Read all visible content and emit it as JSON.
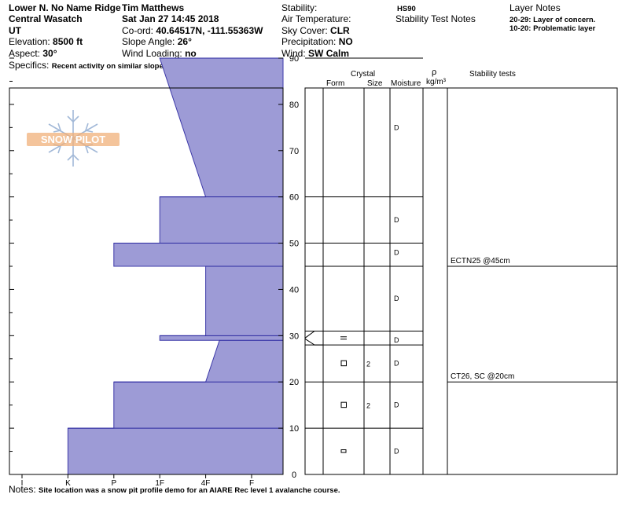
{
  "header": {
    "location": "Lower N. No Name Ridge",
    "observer": "Tim Matthews",
    "range": "Central Wasatch",
    "datetime": "Sat Jan 27 14:45 2018",
    "state": "UT",
    "coord_label": "Co-ord:",
    "coord_value": "40.64517N, -111.55363W",
    "elevation_label": "Elevation:",
    "elevation_value": "8500 ft",
    "slope_label": "Slope Angle:",
    "slope_value": "26°",
    "aspect_label": "Aspect:",
    "aspect_value": "30°",
    "wind_loading_label": "Wind Loading:",
    "wind_loading_value": "no",
    "specifics_label": "Specifics:",
    "specifics_value": "Recent activity on similar slopes",
    "stability_label": "Stability:",
    "air_temp_label": "Air Temperature:",
    "sky_label": "Sky Cover:",
    "sky_value": "CLR",
    "precip_label": "Precipitation:",
    "precip_value": "NO",
    "wind_label": "Wind:",
    "wind_value": "SW Calm",
    "hs": "HS90",
    "stability_notes": "Stability Test Notes",
    "layer_notes_title": "Layer Notes",
    "layer_note_1": "20-29: Layer of concern.",
    "layer_note_2": "10-20: Problematic layer"
  },
  "columns": {
    "crystal": "Crystal",
    "form": "Form",
    "size": "Size",
    "moisture": "Moisture",
    "rho": "ρ",
    "density_unit": "kg/m³",
    "stability_tests": "Stability tests"
  },
  "logo_text": "SNOW PILOT",
  "notes_label": "Notes:",
  "notes_value": "Site location was a snow pit profile demo for an AIARE Rec level 1 avalanche course.",
  "chart_data": {
    "type": "area",
    "title": "",
    "xlabel": "",
    "ylabel": "",
    "hardness_scale": [
      "I",
      "K",
      "P",
      "1F",
      "4F",
      "F"
    ],
    "y_ticks": [
      0,
      10,
      20,
      30,
      40,
      50,
      60,
      70,
      80,
      90
    ],
    "ylim": [
      0,
      90
    ],
    "hs_cm": 90,
    "hardness_profile": [
      {
        "bottom": 0,
        "top": 10,
        "hardness": "K"
      },
      {
        "bottom": 10,
        "top": 20,
        "hardness": "P"
      },
      {
        "bottom": 20,
        "top": 29,
        "hardness": "4F",
        "hardness_top": "4F+",
        "note": "tapers"
      },
      {
        "bottom": 29,
        "top": 30,
        "hardness": "1F"
      },
      {
        "bottom": 30,
        "top": 45,
        "hardness": "4F"
      },
      {
        "bottom": 45,
        "top": 50,
        "hardness": "P"
      },
      {
        "bottom": 50,
        "top": 60,
        "hardness": "1F"
      },
      {
        "bottom": 60,
        "top": 90,
        "hardness": "4F",
        "hardness_top": "1F"
      }
    ],
    "layer_boundaries": [
      10,
      20,
      28,
      31,
      45,
      50,
      60,
      90
    ],
    "grains": [
      {
        "depth": 5,
        "symbol": "rect-small",
        "size": ""
      },
      {
        "depth": 15,
        "symbol": "square",
        "size": "2"
      },
      {
        "depth": 24,
        "symbol": "square",
        "size": "2"
      },
      {
        "depth": 29.5,
        "symbol": "double-line",
        "size": ""
      }
    ],
    "moisture": [
      {
        "depth": 5,
        "value": "D"
      },
      {
        "depth": 15,
        "value": "D"
      },
      {
        "depth": 24,
        "value": "D"
      },
      {
        "depth": 29,
        "value": "D"
      },
      {
        "depth": 38,
        "value": "D"
      },
      {
        "depth": 48,
        "value": "D"
      },
      {
        "depth": 55,
        "value": "D"
      },
      {
        "depth": 75,
        "value": "D"
      }
    ],
    "stability_tests": [
      {
        "depth": 45,
        "label": "ECTN25 @45cm"
      },
      {
        "depth": 20,
        "label": "CT26, SC @20cm"
      }
    ]
  }
}
